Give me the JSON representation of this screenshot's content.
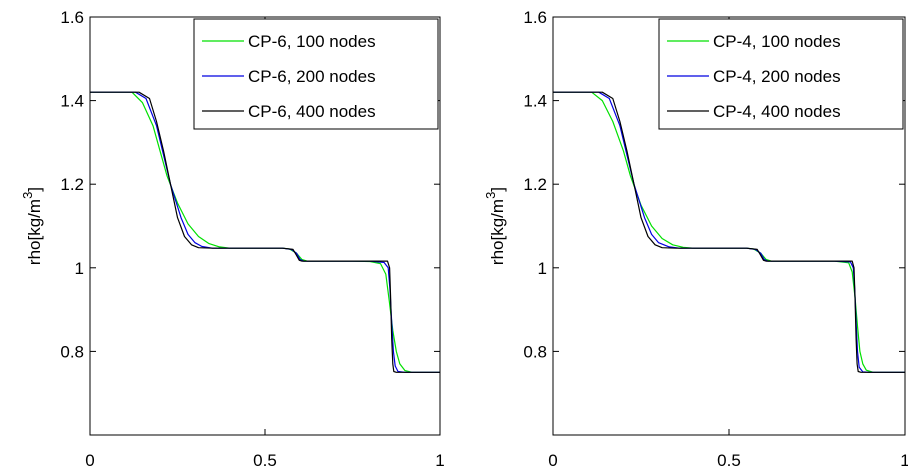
{
  "chart_data": [
    {
      "type": "line",
      "title": "",
      "xlabel": "",
      "ylabel": "rho[kg/m^3]",
      "ylabel_base": "rho[kg/m",
      "ylabel_exp": "3",
      "ylabel_close": "]",
      "xlim": [
        0,
        1
      ],
      "ylim": [
        0.6,
        1.6
      ],
      "xticks": [
        0,
        0.5,
        1
      ],
      "xtick_labels": [
        "0",
        "0.5",
        "1"
      ],
      "yticks": [
        0.8,
        1.0,
        1.2,
        1.4,
        1.6
      ],
      "ytick_labels": [
        "0.8",
        "1",
        "1.2",
        "1.4",
        "1.6"
      ],
      "grid": false,
      "legend_position": "top-right",
      "series": [
        {
          "name": "CP-6, 100 nodes",
          "color": "#00e000",
          "x": [
            0,
            0.12,
            0.15,
            0.18,
            0.2,
            0.22,
            0.25,
            0.28,
            0.31,
            0.34,
            0.37,
            0.4,
            0.45,
            0.5,
            0.55,
            0.57,
            0.59,
            0.605,
            0.62,
            0.65,
            0.7,
            0.75,
            0.8,
            0.83,
            0.845,
            0.855,
            0.865,
            0.875,
            0.885,
            0.9,
            0.92,
            1.0
          ],
          "y": [
            1.42,
            1.42,
            1.395,
            1.34,
            1.28,
            1.22,
            1.155,
            1.105,
            1.075,
            1.058,
            1.05,
            1.047,
            1.047,
            1.047,
            1.047,
            1.045,
            1.035,
            1.02,
            1.016,
            1.016,
            1.016,
            1.016,
            1.015,
            1.01,
            0.985,
            0.92,
            0.85,
            0.8,
            0.77,
            0.754,
            0.75,
            0.75
          ]
        },
        {
          "name": "CP-6, 200 nodes",
          "color": "#0000e0",
          "x": [
            0,
            0.13,
            0.16,
            0.19,
            0.21,
            0.23,
            0.26,
            0.28,
            0.3,
            0.32,
            0.35,
            0.4,
            0.45,
            0.5,
            0.55,
            0.575,
            0.59,
            0.6,
            0.61,
            0.65,
            0.7,
            0.75,
            0.8,
            0.84,
            0.852,
            0.857,
            0.862,
            0.867,
            0.872,
            0.88,
            0.9,
            1.0
          ],
          "y": [
            1.42,
            1.42,
            1.405,
            1.34,
            1.27,
            1.2,
            1.12,
            1.08,
            1.06,
            1.051,
            1.047,
            1.047,
            1.047,
            1.047,
            1.047,
            1.044,
            1.035,
            1.02,
            1.016,
            1.016,
            1.016,
            1.016,
            1.016,
            1.013,
            1.0,
            0.95,
            0.87,
            0.8,
            0.765,
            0.752,
            0.75,
            0.75
          ]
        },
        {
          "name": "CP-6, 400 nodes",
          "color": "#000000",
          "x": [
            0,
            0.14,
            0.17,
            0.19,
            0.21,
            0.23,
            0.25,
            0.27,
            0.29,
            0.31,
            0.35,
            0.4,
            0.45,
            0.5,
            0.55,
            0.58,
            0.59,
            0.598,
            0.605,
            0.65,
            0.7,
            0.75,
            0.8,
            0.85,
            0.856,
            0.859,
            0.862,
            0.865,
            0.868,
            0.875,
            0.9,
            1.0
          ],
          "y": [
            1.42,
            1.42,
            1.405,
            1.35,
            1.28,
            1.2,
            1.12,
            1.075,
            1.055,
            1.048,
            1.047,
            1.047,
            1.047,
            1.047,
            1.047,
            1.044,
            1.03,
            1.018,
            1.016,
            1.016,
            1.016,
            1.016,
            1.016,
            1.016,
            1.0,
            0.93,
            0.83,
            0.77,
            0.752,
            0.75,
            0.75,
            0.75
          ]
        }
      ]
    },
    {
      "type": "line",
      "title": "",
      "xlabel": "",
      "ylabel": "rho[kg/m^3]",
      "ylabel_base": "rho[kg/m",
      "ylabel_exp": "3",
      "ylabel_close": "]",
      "xlim": [
        0,
        1
      ],
      "ylim": [
        0.6,
        1.6
      ],
      "xticks": [
        0,
        0.5,
        1
      ],
      "xtick_labels": [
        "0",
        "0.5",
        "1"
      ],
      "yticks": [
        0.8,
        1.0,
        1.2,
        1.4,
        1.6
      ],
      "ytick_labels": [
        "0.8",
        "1",
        "1.2",
        "1.4",
        "1.6"
      ],
      "grid": false,
      "legend_position": "top-right",
      "series": [
        {
          "name": "CP-4, 100 nodes",
          "color": "#00e000",
          "x": [
            0,
            0.11,
            0.14,
            0.17,
            0.2,
            0.22,
            0.25,
            0.28,
            0.31,
            0.34,
            0.37,
            0.4,
            0.45,
            0.5,
            0.55,
            0.57,
            0.59,
            0.605,
            0.62,
            0.65,
            0.7,
            0.75,
            0.8,
            0.84,
            0.85,
            0.858,
            0.865,
            0.872,
            0.88,
            0.89,
            0.91,
            1.0
          ],
          "y": [
            1.42,
            1.42,
            1.4,
            1.35,
            1.28,
            1.22,
            1.15,
            1.1,
            1.07,
            1.055,
            1.049,
            1.047,
            1.047,
            1.047,
            1.047,
            1.045,
            1.035,
            1.02,
            1.016,
            1.016,
            1.016,
            1.016,
            1.016,
            1.012,
            0.99,
            0.93,
            0.86,
            0.8,
            0.77,
            0.755,
            0.75,
            0.75
          ]
        },
        {
          "name": "CP-4, 200 nodes",
          "color": "#0000e0",
          "x": [
            0,
            0.13,
            0.16,
            0.19,
            0.21,
            0.23,
            0.26,
            0.28,
            0.3,
            0.33,
            0.36,
            0.4,
            0.45,
            0.5,
            0.55,
            0.575,
            0.59,
            0.6,
            0.61,
            0.65,
            0.7,
            0.75,
            0.8,
            0.845,
            0.853,
            0.857,
            0.861,
            0.865,
            0.87,
            0.88,
            0.9,
            1.0
          ],
          "y": [
            1.42,
            1.42,
            1.405,
            1.34,
            1.27,
            1.2,
            1.12,
            1.08,
            1.06,
            1.05,
            1.047,
            1.047,
            1.047,
            1.047,
            1.047,
            1.044,
            1.035,
            1.02,
            1.016,
            1.016,
            1.016,
            1.016,
            1.016,
            1.014,
            1.0,
            0.95,
            0.87,
            0.8,
            0.762,
            0.751,
            0.75,
            0.75
          ]
        },
        {
          "name": "CP-4, 400 nodes",
          "color": "#000000",
          "x": [
            0,
            0.14,
            0.17,
            0.19,
            0.21,
            0.23,
            0.25,
            0.27,
            0.29,
            0.31,
            0.35,
            0.4,
            0.45,
            0.5,
            0.55,
            0.58,
            0.59,
            0.598,
            0.605,
            0.65,
            0.7,
            0.75,
            0.8,
            0.85,
            0.855,
            0.858,
            0.861,
            0.864,
            0.867,
            0.875,
            0.9,
            1.0
          ],
          "y": [
            1.42,
            1.42,
            1.405,
            1.35,
            1.28,
            1.2,
            1.12,
            1.075,
            1.055,
            1.048,
            1.047,
            1.047,
            1.047,
            1.047,
            1.047,
            1.044,
            1.03,
            1.018,
            1.016,
            1.016,
            1.016,
            1.016,
            1.016,
            1.016,
            1.0,
            0.93,
            0.83,
            0.77,
            0.752,
            0.75,
            0.75,
            0.75
          ]
        }
      ]
    }
  ]
}
